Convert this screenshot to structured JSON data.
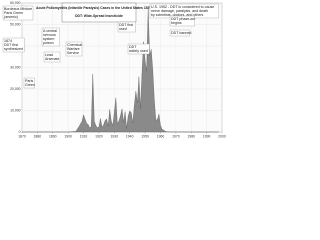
{
  "chart_data": {
    "type": "area",
    "title": "Acute Poliomyelitis (Infantile Paralysis) Cases in the United States  1870 - 1998",
    "subtitle": "DDT: Wide-Spread Insecticide",
    "color": "#8a8a8a",
    "grid": true,
    "xlim": [
      1870,
      2000
    ],
    "xticks": [
      1870,
      1880,
      1890,
      1900,
      1910,
      1920,
      1930,
      1940,
      1950,
      1960,
      1970,
      1980,
      1990,
      2000
    ],
    "ylim": [
      0,
      60000
    ],
    "yticks": [
      0,
      {
        "value": 10000,
        "label": "10,000"
      },
      {
        "value": 20000,
        "label": "20,000"
      },
      {
        "value": 30000,
        "label": "30,000"
      },
      {
        "value": 40000,
        "label": "40,000"
      },
      {
        "value": 50000,
        "label": "50,000"
      },
      {
        "value": 60000,
        "label": "60,000"
      }
    ],
    "x": [
      1870,
      1880,
      1890,
      1900,
      1905,
      1907,
      1909,
      1910,
      1911,
      1912,
      1913,
      1914,
      1915,
      1916,
      1917,
      1918,
      1919,
      1920,
      1921,
      1922,
      1923,
      1924,
      1925,
      1926,
      1927,
      1928,
      1929,
      1930,
      1931,
      1932,
      1933,
      1934,
      1935,
      1936,
      1937,
      1938,
      1939,
      1940,
      1941,
      1942,
      1943,
      1944,
      1945,
      1946,
      1947,
      1948,
      1949,
      1950,
      1951,
      1952,
      1953,
      1954,
      1955,
      1956,
      1957,
      1958,
      1959,
      1960,
      1961,
      1962,
      1963,
      1964,
      1965,
      1970,
      1980,
      1990,
      1998
    ],
    "values": [
      0,
      0,
      0,
      0,
      300,
      2500,
      5000,
      8000,
      6000,
      4000,
      3500,
      2000,
      2500,
      27000,
      5000,
      3000,
      2000,
      2300,
      6300,
      2300,
      3200,
      5300,
      6100,
      2800,
      10500,
      5200,
      2900,
      9200,
      15900,
      3800,
      5100,
      7500,
      10800,
      4500,
      9500,
      1700,
      7300,
      9800,
      9000,
      4200,
      12400,
      19000,
      13600,
      25700,
      10800,
      27700,
      42000,
      33300,
      28400,
      57900,
      35600,
      38500,
      28900,
      15100,
      5500,
      5800,
      8400,
      3200,
      1300,
      900,
      400,
      120,
      70,
      30,
      10,
      6,
      0
    ],
    "annotations": [
      {
        "lines": [
          "Bordeaux Mixture",
          "Paris Green",
          "(arsenic)"
        ],
        "color": "#222"
      },
      {
        "lines": [
          "1874",
          "DDT first",
          "synthesized"
        ],
        "color": "#222"
      },
      {
        "lines": [
          "A central",
          "nervous",
          "system",
          "poison"
        ],
        "color": "#222"
      },
      {
        "lines": [
          "Lead",
          "Arsenate"
        ],
        "color": "#222"
      },
      {
        "lines": [
          "Chemical",
          "Warfare",
          "Service"
        ],
        "color": "#222"
      },
      {
        "lines": [
          "Paris",
          "Green"
        ],
        "color": "#222"
      },
      {
        "lines": [
          "DDT first",
          "used"
        ],
        "color": "#222"
      },
      {
        "lines": [
          "DDT",
          "widely used"
        ],
        "color": "#222"
      },
      {
        "lines": [
          "U.S. 1952 - DDT is considered to cause",
          "nerve damage, paralysis, and death",
          "by scientists, doctors, and others"
        ],
        "color": "#b00000"
      },
      {
        "lines": [
          "DDT phase-out",
          "begins"
        ],
        "color": "#b00000"
      },
      {
        "lines": [
          "DDT banned"
        ],
        "color": "#b00000"
      }
    ]
  }
}
